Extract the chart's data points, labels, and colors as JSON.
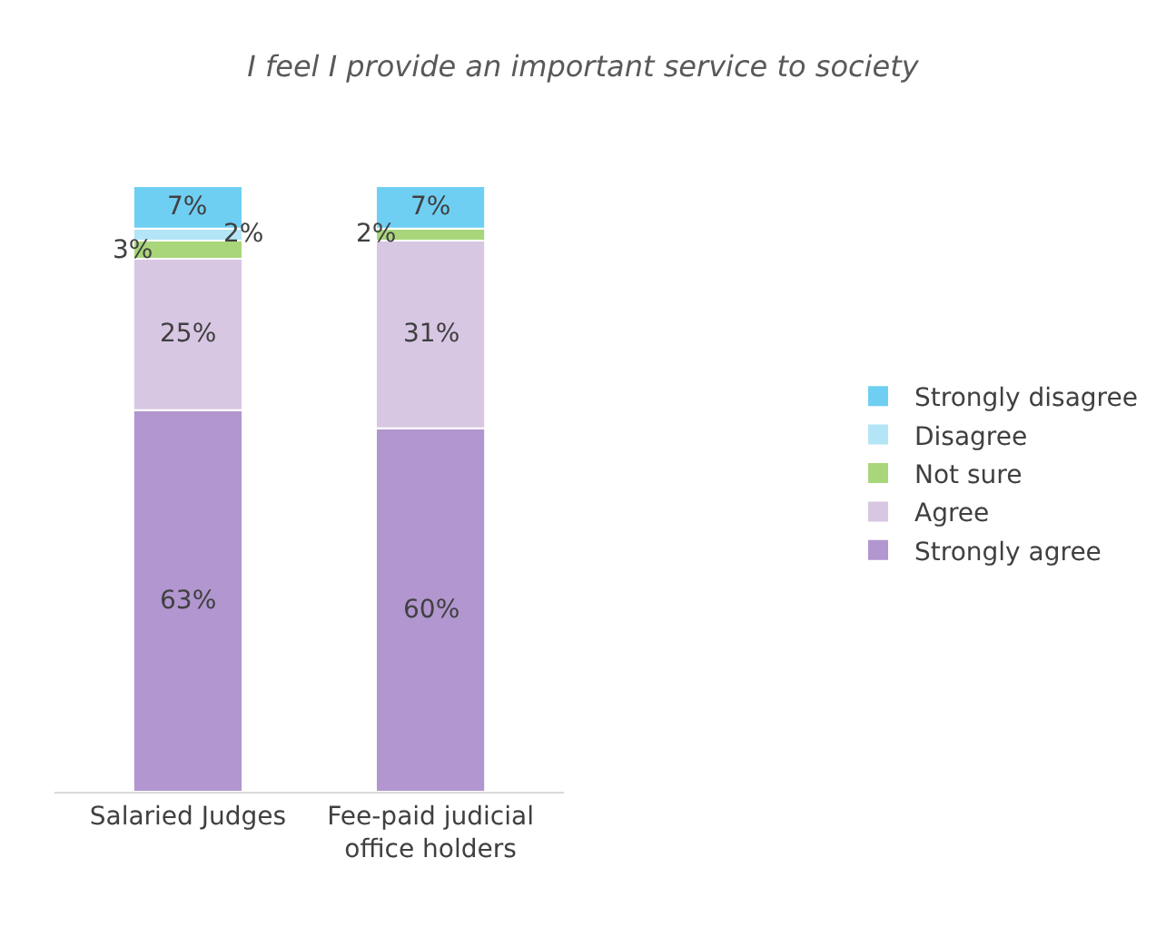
{
  "chart_data": {
    "type": "bar",
    "stacked": true,
    "title": "I feel I provide an important service to society",
    "categories": [
      "Salaried Judges",
      "Fee-paid judicial office holders"
    ],
    "series": [
      {
        "name": "Strongly agree",
        "color": "#b196cf",
        "values": [
          63,
          60
        ],
        "value_labels": [
          "63%",
          "60%"
        ]
      },
      {
        "name": "Agree",
        "color": "#d8c7e3",
        "values": [
          25,
          31
        ],
        "value_labels": [
          "25%",
          "31%"
        ]
      },
      {
        "name": "Not sure",
        "color": "#a9d67a",
        "values": [
          3,
          2
        ],
        "value_labels": [
          "3%",
          "2%"
        ]
      },
      {
        "name": "Disagree",
        "color": "#b3e5f7",
        "values": [
          2,
          0
        ],
        "value_labels": [
          "2%",
          null
        ]
      },
      {
        "name": "Strongly disagree",
        "color": "#6fcff3",
        "values": [
          7,
          7
        ],
        "value_labels": [
          "7%",
          "7%"
        ]
      }
    ],
    "legend": "right"
  }
}
